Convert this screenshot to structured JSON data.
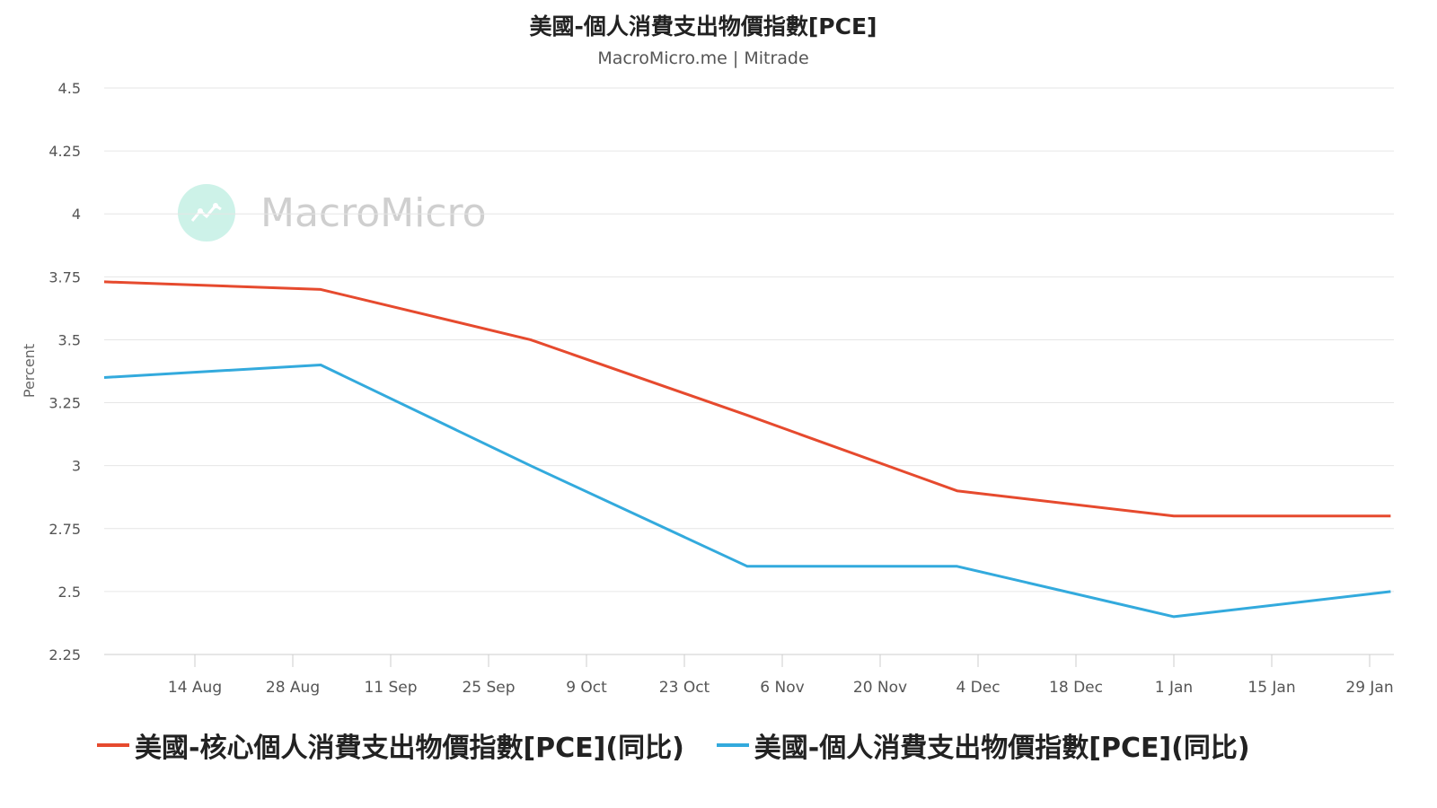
{
  "header": {
    "title": "美國-個人消費支出物價指數[PCE]",
    "subtitle": "MacroMicro.me | Mitrade"
  },
  "watermark": {
    "text": "MacroMicro",
    "icon": "chart-line-icon"
  },
  "colors": {
    "core": "#e64a2e",
    "headline": "#33aadd",
    "grid": "#e6e6e6"
  },
  "chart_data": {
    "type": "line",
    "ylabel": "Percent",
    "ylim": [
      2.25,
      4.5
    ],
    "yticks": [
      "4.5",
      "4.25",
      "4",
      "3.75",
      "3.5",
      "3.25",
      "3",
      "2.75",
      "2.5",
      "2.25"
    ],
    "xticks": [
      "14 Aug",
      "28 Aug",
      "11 Sep",
      "25 Sep",
      "9 Oct",
      "23 Oct",
      "6 Nov",
      "20 Nov",
      "4 Dec",
      "18 Dec",
      "1 Jan",
      "15 Jan",
      "29 Jan"
    ],
    "grid": true,
    "legend_position": "bottom",
    "series": [
      {
        "name": "美國-核心個人消費支出物價指數[PCE](同比)",
        "color": "#e64a2e",
        "points": [
          {
            "x": "1 Aug",
            "y": 3.73
          },
          {
            "x": "1 Sep",
            "y": 3.7
          },
          {
            "x": "1 Oct",
            "y": 3.5
          },
          {
            "x": "1 Nov",
            "y": 3.2
          },
          {
            "x": "1 Dec",
            "y": 2.9
          },
          {
            "x": "1 Jan",
            "y": 2.8
          },
          {
            "x": "1 Feb",
            "y": 2.8
          }
        ]
      },
      {
        "name": "美國-個人消費支出物價指數[PCE](同比)",
        "color": "#33aadd",
        "points": [
          {
            "x": "1 Aug",
            "y": 3.35
          },
          {
            "x": "1 Sep",
            "y": 3.4
          },
          {
            "x": "1 Oct",
            "y": 3.0
          },
          {
            "x": "1 Nov",
            "y": 2.6
          },
          {
            "x": "1 Dec",
            "y": 2.6
          },
          {
            "x": "1 Jan",
            "y": 2.4
          },
          {
            "x": "1 Feb",
            "y": 2.5
          }
        ]
      }
    ]
  }
}
